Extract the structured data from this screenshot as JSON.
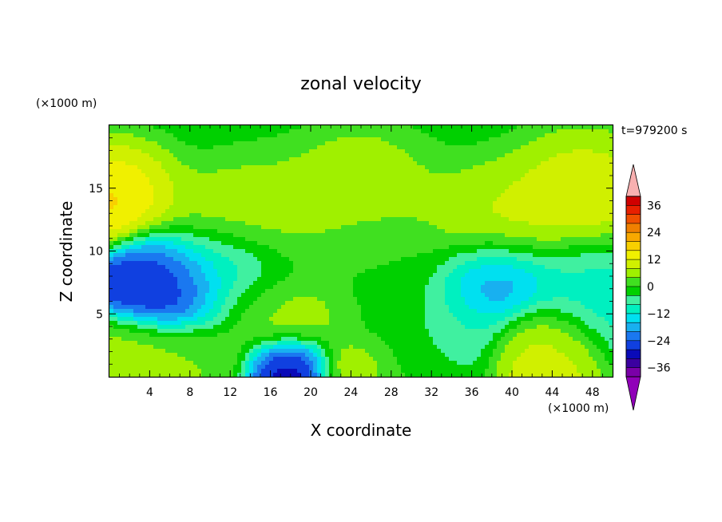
{
  "chart_data": {
    "type": "heatmap",
    "title": "zonal velocity",
    "xlabel": "X coordinate",
    "ylabel": "Z coordinate",
    "x_unit": "(×1000 m)",
    "y_unit": "(×1000 m)",
    "time_label": "t=979200 s",
    "xlim": [
      0,
      50
    ],
    "ylim": [
      0,
      20
    ],
    "x_ticks": [
      4,
      8,
      12,
      16,
      20,
      24,
      28,
      32,
      36,
      40,
      44,
      48
    ],
    "y_ticks": [
      5,
      10,
      15
    ],
    "colorbar": {
      "levels": [
        -40,
        -36,
        -32,
        -28,
        -24,
        -20,
        -16,
        -12,
        -8,
        -4,
        0,
        4,
        8,
        12,
        16,
        20,
        24,
        28,
        32,
        36,
        40
      ],
      "tick_labels": [
        "36",
        "24",
        "12",
        "0",
        "−12",
        "−24",
        "−36"
      ],
      "tick_values": [
        36,
        24,
        12,
        0,
        -12,
        -24,
        -36
      ],
      "colors": [
        "#7a00a8",
        "#3b00a0",
        "#0a0ab8",
        "#1040e0",
        "#1a78f0",
        "#18b0f0",
        "#00e0f0",
        "#00f0c0",
        "#40f0a0",
        "#00d000",
        "#40e020",
        "#a0f000",
        "#d0f000",
        "#f0f000",
        "#f8d000",
        "#f8a800",
        "#f08000",
        "#f05000",
        "#e82000",
        "#d00000"
      ],
      "overflow_high_color": "#f8b0b0",
      "overflow_low_color": "#9000b8"
    },
    "field_sources": [
      {
        "x": 0,
        "z": 20,
        "u": -6,
        "r": 6
      },
      {
        "x": 25,
        "z": 19.5,
        "u": -8,
        "r": 9
      },
      {
        "x": 50,
        "z": 19,
        "u": -6,
        "r": 8
      },
      {
        "x": 0,
        "z": 16.5,
        "u": 26,
        "r": 4
      },
      {
        "x": 25,
        "z": 16.8,
        "u": 20,
        "r": 5
      },
      {
        "x": 48,
        "z": 16.2,
        "u": 24,
        "r": 5
      },
      {
        "x": 15,
        "z": 14,
        "u": 10,
        "r": 5
      },
      {
        "x": 38,
        "z": 13.5,
        "u": 12,
        "r": 5
      },
      {
        "x": 25,
        "z": 12,
        "u": 4,
        "r": 5
      },
      {
        "x": 6,
        "z": 7,
        "u": -30,
        "r": 3.2
      },
      {
        "x": 12,
        "z": 8,
        "u": -12,
        "r": 4
      },
      {
        "x": 15.5,
        "z": 5.5,
        "u": 8,
        "r": 3
      },
      {
        "x": 20,
        "z": 5,
        "u": 6,
        "r": 2.5
      },
      {
        "x": 18,
        "z": 0.5,
        "u": -30,
        "r": 2.5
      },
      {
        "x": 24,
        "z": 0.8,
        "u": 10,
        "r": 2
      },
      {
        "x": 28,
        "z": 8,
        "u": -2,
        "r": 4
      },
      {
        "x": 29,
        "z": 3,
        "u": 0,
        "r": 4
      },
      {
        "x": 38,
        "z": 7.5,
        "u": -22,
        "r": 3.5
      },
      {
        "x": 34,
        "z": 4,
        "u": -8,
        "r": 3
      },
      {
        "x": 43,
        "z": 2.8,
        "u": 10,
        "r": 3
      },
      {
        "x": 48,
        "z": 7,
        "u": -10,
        "r": 4
      },
      {
        "x": 3,
        "z": 1.5,
        "u": 6,
        "r": 3
      },
      {
        "x": 9,
        "z": 1.5,
        "u": 4,
        "r": 3
      }
    ]
  }
}
